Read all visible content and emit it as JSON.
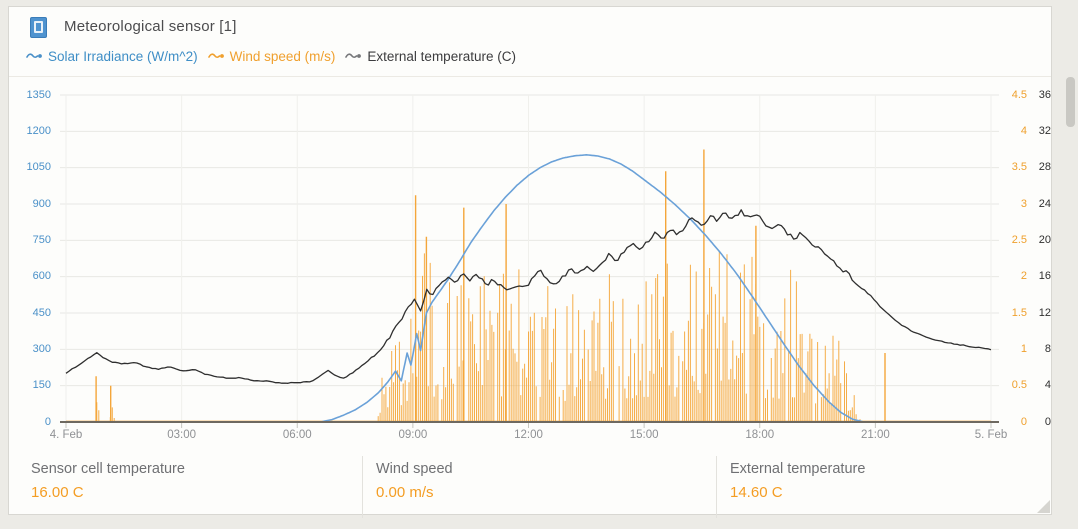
{
  "header": {
    "title": "Meteorological sensor [1]"
  },
  "legend": {
    "items": [
      {
        "label": "Solar Irradiance (W/m^2)",
        "color": "#3f8ec6"
      },
      {
        "label": "Wind speed (m/s)",
        "color": "#f0a02e"
      },
      {
        "label": "External temperature (C)",
        "color": "#58585a"
      }
    ]
  },
  "stats": [
    {
      "label": "Sensor cell temperature",
      "value": "16.00 C"
    },
    {
      "label": "Wind speed",
      "value": "0.00 m/s"
    },
    {
      "label": "External temperature",
      "value": "14.60 C"
    }
  ],
  "chart_data": {
    "type": "line",
    "title": "Meteorological sensor [1]",
    "x_axis": {
      "ticks": [
        {
          "hour": 0,
          "label": "4. Feb"
        },
        {
          "hour": 3,
          "label": "03:00"
        },
        {
          "hour": 6,
          "label": "06:00"
        },
        {
          "hour": 9,
          "label": "09:00"
        },
        {
          "hour": 12,
          "label": "12:00"
        },
        {
          "hour": 15,
          "label": "15:00"
        },
        {
          "hour": 18,
          "label": "18:00"
        },
        {
          "hour": 21,
          "label": "21:00"
        },
        {
          "hour": 24,
          "label": "5. Feb"
        }
      ],
      "range_hours": [
        0,
        24
      ]
    },
    "y_axes": {
      "solar": {
        "title": "Solar Irradiance (W/m^2)",
        "max": 1350,
        "ticks": [
          0,
          150,
          300,
          450,
          600,
          750,
          900,
          1050,
          1200,
          1350
        ],
        "color": "#4a90c8"
      },
      "wind": {
        "title": "Wind speed (m/s)",
        "max": 4.5,
        "ticks": [
          0,
          0.5,
          1,
          1.5,
          2,
          2.5,
          3,
          3.5,
          4,
          4.5
        ],
        "color": "#efa02d"
      },
      "temp": {
        "title": "External temperature (C)",
        "max": 36,
        "ticks": [
          0,
          4,
          8,
          12,
          16,
          20,
          24,
          28,
          32,
          36
        ],
        "color": "#303030"
      }
    },
    "grid": {
      "horizontal": true,
      "vertical": true
    },
    "series": {
      "solar": {
        "name": "Solar Irradiance",
        "unit": "W/m^2",
        "color": "#6aa1d8",
        "points": [
          [
            0,
            0
          ],
          [
            6.6,
            0
          ],
          [
            6.9,
            10
          ],
          [
            7.2,
            28
          ],
          [
            7.5,
            50
          ],
          [
            7.8,
            80
          ],
          [
            8.1,
            120
          ],
          [
            8.35,
            165
          ],
          [
            8.55,
            210
          ],
          [
            8.7,
            170
          ],
          [
            8.85,
            285
          ],
          [
            8.95,
            235
          ],
          [
            9.1,
            365
          ],
          [
            9.2,
            295
          ],
          [
            9.35,
            450
          ],
          [
            9.5,
            495
          ],
          [
            9.7,
            540
          ],
          [
            9.9,
            585
          ],
          [
            10.2,
            660
          ],
          [
            10.5,
            740
          ],
          [
            10.8,
            808
          ],
          [
            11.1,
            872
          ],
          [
            11.4,
            928
          ],
          [
            11.7,
            977
          ],
          [
            12,
            1018
          ],
          [
            12.3,
            1050
          ],
          [
            12.6,
            1074
          ],
          [
            12.9,
            1090
          ],
          [
            13.2,
            1099
          ],
          [
            13.5,
            1103
          ],
          [
            13.8,
            1098
          ],
          [
            14.1,
            1086
          ],
          [
            14.4,
            1065
          ],
          [
            14.7,
            1036
          ],
          [
            15,
            1000
          ],
          [
            15.4,
            952
          ],
          [
            15.8,
            898
          ],
          [
            16.2,
            838
          ],
          [
            16.6,
            770
          ],
          [
            17,
            695
          ],
          [
            17.4,
            612
          ],
          [
            17.8,
            520
          ],
          [
            18.2,
            424
          ],
          [
            18.6,
            328
          ],
          [
            19,
            235
          ],
          [
            19.4,
            152
          ],
          [
            19.8,
            82
          ],
          [
            20.1,
            40
          ],
          [
            20.4,
            12
          ],
          [
            20.7,
            0
          ],
          [
            24,
            0
          ]
        ]
      },
      "temp": {
        "name": "External temperature",
        "unit": "C",
        "color": "#2f2f2f",
        "noise": 0.5,
        "noise_window": [
          8,
          20.8
        ],
        "points": [
          [
            0,
            5.4
          ],
          [
            0.3,
            6.2
          ],
          [
            0.6,
            7.1
          ],
          [
            0.8,
            7.6
          ],
          [
            1,
            7
          ],
          [
            1.2,
            6.6
          ],
          [
            1.5,
            6.4
          ],
          [
            1.8,
            6.6
          ],
          [
            2.1,
            6
          ],
          [
            2.4,
            5.8
          ],
          [
            2.7,
            6.1
          ],
          [
            3,
            5.6
          ],
          [
            3.3,
            5.8
          ],
          [
            3.6,
            5.3
          ],
          [
            3.9,
            5
          ],
          [
            4.2,
            4.8
          ],
          [
            4.5,
            4.9
          ],
          [
            4.8,
            4.6
          ],
          [
            5.2,
            4.5
          ],
          [
            5.6,
            4.3
          ],
          [
            6,
            4.3
          ],
          [
            6.4,
            4.5
          ],
          [
            6.8,
            5.7
          ],
          [
            7,
            5.1
          ],
          [
            7.2,
            4.8
          ],
          [
            7.5,
            5.6
          ],
          [
            7.8,
            6.6
          ],
          [
            8.1,
            7.8
          ],
          [
            8.4,
            9.4
          ],
          [
            8.7,
            11.2
          ],
          [
            8.9,
            12.6
          ],
          [
            9.05,
            13.4
          ],
          [
            9.2,
            12.2
          ],
          [
            9.35,
            14.6
          ],
          [
            9.5,
            13.8
          ],
          [
            9.7,
            15.4
          ],
          [
            9.9,
            16
          ],
          [
            10.1,
            15.2
          ],
          [
            10.3,
            16.3
          ],
          [
            10.5,
            15.6
          ],
          [
            10.7,
            16.2
          ],
          [
            10.9,
            15
          ],
          [
            11.1,
            15.8
          ],
          [
            11.3,
            14.9
          ],
          [
            11.5,
            14.4
          ],
          [
            11.7,
            15.2
          ],
          [
            11.9,
            14.7
          ],
          [
            12.1,
            15.9
          ],
          [
            12.3,
            16.6
          ],
          [
            12.5,
            15.7
          ],
          [
            12.7,
            15.1
          ],
          [
            12.9,
            15.9
          ],
          [
            13.1,
            16.8
          ],
          [
            13.3,
            16.2
          ],
          [
            13.5,
            17.2
          ],
          [
            13.7,
            16.6
          ],
          [
            13.9,
            17.6
          ],
          [
            14.1,
            18.4
          ],
          [
            14.3,
            17.8
          ],
          [
            14.5,
            18.9
          ],
          [
            14.7,
            19.6
          ],
          [
            14.9,
            19
          ],
          [
            15.1,
            20
          ],
          [
            15.3,
            20.8
          ],
          [
            15.5,
            20.2
          ],
          [
            15.7,
            21.2
          ],
          [
            15.9,
            20.6
          ],
          [
            16.1,
            21.9
          ],
          [
            16.3,
            22.5
          ],
          [
            16.5,
            21.7
          ],
          [
            16.7,
            22.7
          ],
          [
            16.9,
            22.1
          ],
          [
            17.1,
            23.1
          ],
          [
            17.3,
            22.3
          ],
          [
            17.5,
            23.2
          ],
          [
            17.7,
            22.5
          ],
          [
            17.9,
            22.9
          ],
          [
            18.1,
            22
          ],
          [
            18.3,
            21.2
          ],
          [
            18.5,
            21.8
          ],
          [
            18.7,
            20.8
          ],
          [
            18.9,
            20.2
          ],
          [
            19.1,
            20.8
          ],
          [
            19.3,
            19.8
          ],
          [
            19.5,
            19.2
          ],
          [
            19.7,
            18.4
          ],
          [
            19.9,
            17.8
          ],
          [
            20.1,
            17
          ],
          [
            20.3,
            16.2
          ],
          [
            20.5,
            15.4
          ],
          [
            20.7,
            14.6
          ],
          [
            20.9,
            13.8
          ],
          [
            21.1,
            12.8
          ],
          [
            21.4,
            11.6
          ],
          [
            21.7,
            10.6
          ],
          [
            22,
            9.9
          ],
          [
            22.3,
            9.4
          ],
          [
            22.6,
            9
          ],
          [
            22.9,
            8.7
          ],
          [
            23.2,
            8.5
          ],
          [
            23.5,
            8.3
          ],
          [
            23.8,
            8.1
          ],
          [
            24,
            8
          ]
        ]
      },
      "wind": {
        "name": "Wind speed",
        "unit": "m/s",
        "color": "#f4a63a",
        "step_hours": 0.05,
        "seed": 20240204,
        "gap_chance": 0.1,
        "envelope": [
          [
            0,
            0
          ],
          [
            0.68,
            0
          ],
          [
            0.72,
            0.3
          ],
          [
            0.78,
            0.55
          ],
          [
            0.84,
            0.35
          ],
          [
            0.92,
            0
          ],
          [
            1.08,
            0
          ],
          [
            1.14,
            0.45
          ],
          [
            1.22,
            0.35
          ],
          [
            1.3,
            0
          ],
          [
            8.05,
            0
          ],
          [
            8.2,
            0.7
          ],
          [
            8.4,
            1.1
          ],
          [
            8.6,
            1.4
          ],
          [
            8.8,
            1.7
          ],
          [
            9,
            2.1
          ],
          [
            9.2,
            2.3
          ],
          [
            9.4,
            2.5
          ],
          [
            9.6,
            1.9
          ],
          [
            9.8,
            2.1
          ],
          [
            10,
            2.3
          ],
          [
            10.3,
            2.5
          ],
          [
            10.6,
            1.9
          ],
          [
            10.9,
            2.2
          ],
          [
            11.2,
            2.5
          ],
          [
            11.5,
            2
          ],
          [
            11.8,
            2.2
          ],
          [
            12.1,
            2.4
          ],
          [
            12.4,
            1.9
          ],
          [
            12.7,
            2.1
          ],
          [
            13,
            1.8
          ],
          [
            13.3,
            2.2
          ],
          [
            13.6,
            1.7
          ],
          [
            13.9,
            2
          ],
          [
            14.2,
            2.3
          ],
          [
            14.5,
            1.9
          ],
          [
            14.8,
            2.1
          ],
          [
            15.1,
            2.3
          ],
          [
            15.4,
            2.6
          ],
          [
            15.7,
            2.2
          ],
          [
            16,
            2.5
          ],
          [
            16.3,
            2.4
          ],
          [
            16.6,
            2.8
          ],
          [
            16.9,
            2.6
          ],
          [
            17.2,
            2.3
          ],
          [
            17.5,
            2.1
          ],
          [
            17.8,
            2.4
          ],
          [
            18.1,
            2.2
          ],
          [
            18.4,
            1.9
          ],
          [
            18.7,
            2.2
          ],
          [
            19,
            2
          ],
          [
            19.3,
            1.7
          ],
          [
            19.6,
            1.4
          ],
          [
            19.9,
            1.7
          ],
          [
            20.1,
            1.2
          ],
          [
            20.3,
            0.9
          ],
          [
            20.5,
            0.5
          ],
          [
            20.62,
            0
          ],
          [
            24,
            0
          ]
        ],
        "peaks": [
          [
            0.78,
            0.63
          ],
          [
            1.16,
            0.5
          ],
          [
            9.07,
            3.12
          ],
          [
            9.35,
            2.55
          ],
          [
            10.32,
            2.95
          ],
          [
            11.42,
            3.0
          ],
          [
            15.56,
            3.45
          ],
          [
            16.55,
            3.75
          ],
          [
            17.9,
            2.7
          ],
          [
            21.25,
            0.95
          ]
        ]
      }
    }
  }
}
